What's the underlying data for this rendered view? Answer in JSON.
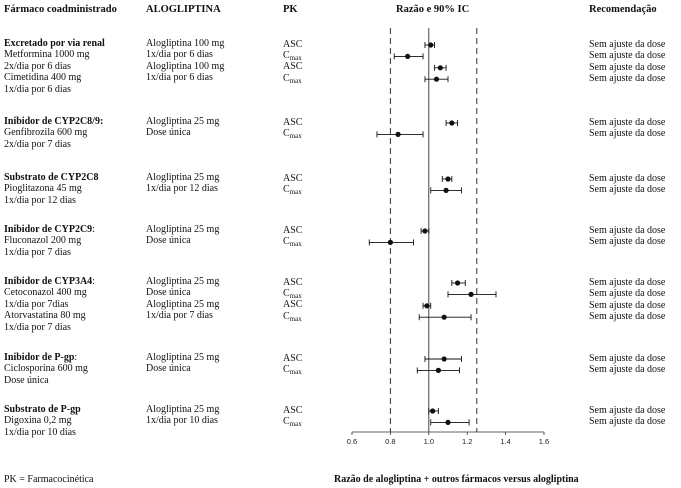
{
  "headers": {
    "drug": "Fármaco coadministrado",
    "alo": "ALOGLIPTINA",
    "pk": "PK",
    "ratio": "Razão e 90% IC",
    "rec": "Recomendação"
  },
  "pk_labels": {
    "asc": "ASC",
    "cmax_base": "C",
    "cmax_sub": "max"
  },
  "groups": [
    {
      "lines": [
        {
          "text": "Excretado por via renal",
          "bold": true
        },
        {
          "text": "Metformina 1000 mg"
        },
        {
          "text": "2x/dia por 6 dias"
        },
        {
          "text": "Cimetidina 400 mg"
        },
        {
          "text": "1x/dia por 6 dias"
        }
      ],
      "alo": [
        "Alogliptina 100 mg",
        "1x/dia por 6 dias",
        "Alogliptina 100 mg",
        "1x/dia por 6 dias"
      ],
      "pk": [
        "asc",
        "cmax",
        "asc",
        "cmax"
      ]
    },
    {
      "lines": [
        {
          "text": "Inibidor de CYP2C8/9:",
          "bold": true
        },
        {
          "text": "Genfibrozila 600 mg"
        },
        {
          "text": "2x/dia por 7 dias"
        }
      ],
      "alo": [
        "Alogliptina 25 mg",
        "Dose única"
      ],
      "pk": [
        "asc",
        "cmax"
      ]
    },
    {
      "lines": [
        {
          "text": "Substrato de CYP2C8",
          "bold": true
        },
        {
          "text": "Pioglitazona 45 mg"
        },
        {
          "text": "1x/dia por 12 dias"
        }
      ],
      "alo": [
        "Alogliptina 25 mg",
        "1x/dia por 12 dias"
      ],
      "pk": [
        "asc",
        "cmax"
      ]
    },
    {
      "lines": [
        {
          "text": "Inibidor de CYP2C9",
          "bold": true,
          "suffix": ":"
        },
        {
          "text": "Fluconazol 200 mg"
        },
        {
          "text": "1x/dia por 7 dias"
        }
      ],
      "alo": [
        "Alogliptina 25 mg",
        "Dose única"
      ],
      "pk": [
        "asc",
        "cmax"
      ]
    },
    {
      "lines": [
        {
          "text": "Inibidor de CYP3A4",
          "bold": true,
          "suffix": ":"
        },
        {
          "text": "Cetoconazol 400 mg"
        },
        {
          "text": "1x/dia por 7dias"
        },
        {
          "text": "Atorvastatina 80 mg"
        },
        {
          "text": "1x/dia por 7 dias"
        }
      ],
      "alo": [
        "Alogliptina 25 mg",
        "Dose única",
        "Alogliptina 25 mg",
        "1x/dia por 7 dias"
      ],
      "pk": [
        "asc",
        "cmax",
        "asc",
        "cmax"
      ]
    },
    {
      "lines": [
        {
          "text": "Inibidor de P-gp",
          "bold": true,
          "suffix": ":"
        },
        {
          "text": "Ciclosporina 600 mg"
        },
        {
          "text": "Dose única"
        }
      ],
      "alo": [
        "Alogliptina 25 mg",
        "Dose única"
      ],
      "pk": [
        "asc",
        "cmax"
      ]
    },
    {
      "lines": [
        {
          "text": "Substrato de P-gp",
          "bold": true
        },
        {
          "text": "Digoxina 0,2 mg"
        },
        {
          "text": "1x/dia por 10 dias"
        }
      ],
      "alo": [
        "Alogliptina 25 mg",
        "1x/dia por 10 dias"
      ],
      "pk": [
        "asc",
        "cmax"
      ]
    }
  ],
  "recommendation": "Sem ajuste da dose",
  "chart_data": {
    "type": "scatter",
    "xlim": [
      0.6,
      1.6
    ],
    "ticks": [
      "0.6",
      "0.8",
      "1.0",
      "1.2",
      "1.4",
      "1.6"
    ],
    "reference_lines": [
      0.8,
      1.0,
      1.25
    ],
    "points": [
      {
        "est": 1.01,
        "lo": 0.98,
        "hi": 1.03
      },
      {
        "est": 0.89,
        "lo": 0.82,
        "hi": 0.97
      },
      {
        "est": 1.06,
        "lo": 1.03,
        "hi": 1.09
      },
      {
        "est": 1.04,
        "lo": 0.98,
        "hi": 1.1
      },
      {
        "est": 1.12,
        "lo": 1.09,
        "hi": 1.15
      },
      {
        "est": 0.84,
        "lo": 0.73,
        "hi": 0.97
      },
      {
        "est": 1.1,
        "lo": 1.07,
        "hi": 1.12
      },
      {
        "est": 1.09,
        "lo": 1.01,
        "hi": 1.17
      },
      {
        "est": 0.98,
        "lo": 0.96,
        "hi": 1.0
      },
      {
        "est": 0.8,
        "lo": 0.69,
        "hi": 0.92
      },
      {
        "est": 1.15,
        "lo": 1.12,
        "hi": 1.19
      },
      {
        "est": 1.22,
        "lo": 1.1,
        "hi": 1.35
      },
      {
        "est": 0.99,
        "lo": 0.97,
        "hi": 1.01
      },
      {
        "est": 1.08,
        "lo": 0.95,
        "hi": 1.22
      },
      {
        "est": 1.08,
        "lo": 0.98,
        "hi": 1.17
      },
      {
        "est": 1.05,
        "lo": 0.94,
        "hi": 1.16
      },
      {
        "est": 1.02,
        "lo": 1.0,
        "hi": 1.05
      },
      {
        "est": 1.1,
        "lo": 1.01,
        "hi": 1.21
      }
    ]
  },
  "footer": {
    "pk_note": "PK = Farmacocinética",
    "xlabel": "Razão de alogliptina + outros fármacos versus alogliptina"
  }
}
